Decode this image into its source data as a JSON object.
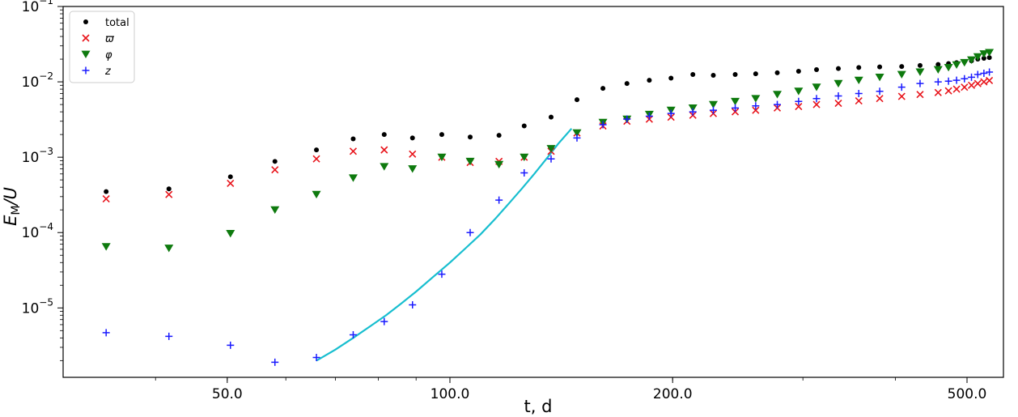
{
  "chart_data": {
    "type": "scatter",
    "title": "",
    "xlabel": "t, d",
    "ylabel": "E_M/U",
    "xscale": "log",
    "yscale": "log",
    "xlim": [
      30,
      560
    ],
    "ylim": [
      1.2e-06,
      0.1
    ],
    "legend_position": "top-left",
    "grid": false,
    "x_ticks": [
      {
        "value": 50,
        "label": "50.0"
      },
      {
        "value": 100,
        "label": "100.0"
      },
      {
        "value": 200,
        "label": "200.0"
      },
      {
        "value": 500,
        "label": "500.0"
      }
    ],
    "y_ticks": [
      {
        "value": 1e-05,
        "base": "10",
        "exp": "−5"
      },
      {
        "value": 0.0001,
        "base": "10",
        "exp": "−4"
      },
      {
        "value": 0.001,
        "base": "10",
        "exp": "−3"
      },
      {
        "value": 0.01,
        "base": "10",
        "exp": "−2"
      },
      {
        "value": 0.1,
        "base": "10",
        "exp": "−1"
      }
    ],
    "series": [
      {
        "name": "total",
        "marker": "dot",
        "color": "#000000",
        "points": [
          [
            34.3,
            0.00035
          ],
          [
            41.7,
            0.00038
          ],
          [
            50.5,
            0.00055
          ],
          [
            58.0,
            0.00088
          ],
          [
            66.0,
            0.00125
          ],
          [
            74.0,
            0.00175
          ],
          [
            81.5,
            0.002
          ],
          [
            89.0,
            0.0018
          ],
          [
            97.5,
            0.002
          ],
          [
            106.5,
            0.00185
          ],
          [
            116.5,
            0.00195
          ],
          [
            126.0,
            0.0026
          ],
          [
            137.0,
            0.0034
          ],
          [
            148.5,
            0.0058
          ],
          [
            161.0,
            0.0082
          ],
          [
            173.5,
            0.0095
          ],
          [
            186.0,
            0.0105
          ],
          [
            199.0,
            0.0112
          ],
          [
            213.0,
            0.0125
          ],
          [
            227.0,
            0.0122
          ],
          [
            243.0,
            0.0125
          ],
          [
            259.0,
            0.0128
          ],
          [
            277.0,
            0.0132
          ],
          [
            296.0,
            0.0138
          ],
          [
            313.0,
            0.0145
          ],
          [
            335.0,
            0.015
          ],
          [
            357.0,
            0.0155
          ],
          [
            381.0,
            0.0158
          ],
          [
            408.0,
            0.016
          ],
          [
            432.0,
            0.0165
          ],
          [
            457.0,
            0.017
          ],
          [
            472.0,
            0.0175
          ],
          [
            484.0,
            0.018
          ],
          [
            496.0,
            0.0185
          ],
          [
            507.0,
            0.019
          ],
          [
            517.0,
            0.02
          ],
          [
            527.0,
            0.0205
          ],
          [
            536.0,
            0.021
          ]
        ]
      },
      {
        "name": "ϖ",
        "marker": "x",
        "color": "#e8141b",
        "points": [
          [
            34.3,
            0.00028
          ],
          [
            41.7,
            0.00032
          ],
          [
            50.5,
            0.00045
          ],
          [
            58.0,
            0.00068
          ],
          [
            66.0,
            0.00095
          ],
          [
            74.0,
            0.0012
          ],
          [
            81.5,
            0.00125
          ],
          [
            89.0,
            0.0011
          ],
          [
            97.5,
            0.001
          ],
          [
            106.5,
            0.00085
          ],
          [
            116.5,
            0.00088
          ],
          [
            126.0,
            0.001
          ],
          [
            137.0,
            0.0012
          ],
          [
            148.5,
            0.0021
          ],
          [
            161.0,
            0.0026
          ],
          [
            173.5,
            0.003
          ],
          [
            186.0,
            0.0032
          ],
          [
            199.0,
            0.0034
          ],
          [
            213.0,
            0.0036
          ],
          [
            227.0,
            0.0038
          ],
          [
            243.0,
            0.004
          ],
          [
            259.0,
            0.0042
          ],
          [
            277.0,
            0.0045
          ],
          [
            296.0,
            0.0047
          ],
          [
            313.0,
            0.005
          ],
          [
            335.0,
            0.0052
          ],
          [
            357.0,
            0.0056
          ],
          [
            381.0,
            0.006
          ],
          [
            408.0,
            0.0064
          ],
          [
            432.0,
            0.0068
          ],
          [
            457.0,
            0.0072
          ],
          [
            472.0,
            0.0076
          ],
          [
            484.0,
            0.008
          ],
          [
            496.0,
            0.0085
          ],
          [
            507.0,
            0.009
          ],
          [
            517.0,
            0.0095
          ],
          [
            527.0,
            0.01
          ],
          [
            536.0,
            0.0104
          ]
        ]
      },
      {
        "name": "φ",
        "marker": "triangle-down",
        "color": "#0e7a0e",
        "points": [
          [
            34.3,
            6.5e-05
          ],
          [
            41.7,
            6.2e-05
          ],
          [
            50.5,
            9.7e-05
          ],
          [
            58.0,
            0.0002
          ],
          [
            66.0,
            0.00032
          ],
          [
            74.0,
            0.00053
          ],
          [
            81.5,
            0.00075
          ],
          [
            89.0,
            0.0007
          ],
          [
            97.5,
            0.001
          ],
          [
            106.5,
            0.00088
          ],
          [
            116.5,
            0.0008
          ],
          [
            126.0,
            0.001
          ],
          [
            137.0,
            0.0013
          ],
          [
            148.5,
            0.0021
          ],
          [
            161.0,
            0.0029
          ],
          [
            173.5,
            0.0032
          ],
          [
            186.0,
            0.0037
          ],
          [
            199.0,
            0.0042
          ],
          [
            213.0,
            0.0045
          ],
          [
            227.0,
            0.005
          ],
          [
            243.0,
            0.0055
          ],
          [
            259.0,
            0.006
          ],
          [
            277.0,
            0.0068
          ],
          [
            296.0,
            0.0075
          ],
          [
            313.0,
            0.0085
          ],
          [
            335.0,
            0.0095
          ],
          [
            357.0,
            0.0105
          ],
          [
            381.0,
            0.0115
          ],
          [
            408.0,
            0.0125
          ],
          [
            432.0,
            0.0135
          ],
          [
            457.0,
            0.0145
          ],
          [
            472.0,
            0.0155
          ],
          [
            484.0,
            0.0168
          ],
          [
            496.0,
            0.018
          ],
          [
            507.0,
            0.0195
          ],
          [
            517.0,
            0.0215
          ],
          [
            527.0,
            0.0235
          ],
          [
            536.0,
            0.0245
          ]
        ]
      },
      {
        "name": "z",
        "marker": "plus",
        "color": "#1a1aff",
        "points": [
          [
            34.3,
            4.7e-06
          ],
          [
            41.7,
            4.2e-06
          ],
          [
            50.5,
            3.2e-06
          ],
          [
            58.0,
            1.9e-06
          ],
          [
            66.0,
            2.2e-06
          ],
          [
            74.0,
            4.4e-06
          ],
          [
            81.5,
            6.6e-06
          ],
          [
            89.0,
            1.1e-05
          ],
          [
            97.5,
            2.8e-05
          ],
          [
            106.5,
            0.0001
          ],
          [
            116.5,
            0.00027
          ],
          [
            126.0,
            0.00062
          ],
          [
            137.0,
            0.00095
          ],
          [
            148.5,
            0.0018
          ],
          [
            161.0,
            0.0027
          ],
          [
            173.5,
            0.0032
          ],
          [
            186.0,
            0.0035
          ],
          [
            199.0,
            0.0038
          ],
          [
            213.0,
            0.004
          ],
          [
            227.0,
            0.0042
          ],
          [
            243.0,
            0.0045
          ],
          [
            259.0,
            0.0048
          ],
          [
            277.0,
            0.005
          ],
          [
            296.0,
            0.0055
          ],
          [
            313.0,
            0.006
          ],
          [
            335.0,
            0.0065
          ],
          [
            357.0,
            0.007
          ],
          [
            381.0,
            0.0075
          ],
          [
            408.0,
            0.0085
          ],
          [
            432.0,
            0.0095
          ],
          [
            457.0,
            0.01
          ],
          [
            472.0,
            0.0102
          ],
          [
            484.0,
            0.0105
          ],
          [
            496.0,
            0.011
          ],
          [
            507.0,
            0.0115
          ],
          [
            517.0,
            0.0125
          ],
          [
            527.0,
            0.013
          ],
          [
            536.0,
            0.0135
          ]
        ]
      }
    ],
    "fit_line": {
      "color": "#17becf",
      "points": [
        [
          66.0,
          2e-06
        ],
        [
          70.0,
          2.8e-06
        ],
        [
          74.0,
          4e-06
        ],
        [
          78.0,
          5.7e-06
        ],
        [
          82.0,
          8e-06
        ],
        [
          86.0,
          1.15e-05
        ],
        [
          90.0,
          1.65e-05
        ],
        [
          95.0,
          2.6e-05
        ],
        [
          100.0,
          4e-05
        ],
        [
          105.0,
          6.2e-05
        ],
        [
          110.0,
          9.5e-05
        ],
        [
          115.0,
          0.00015
        ],
        [
          120.0,
          0.00024
        ],
        [
          125.0,
          0.00038
        ],
        [
          130.0,
          0.0006
        ],
        [
          135.0,
          0.00095
        ],
        [
          140.0,
          0.0015
        ],
        [
          146.0,
          0.0024
        ]
      ]
    }
  }
}
